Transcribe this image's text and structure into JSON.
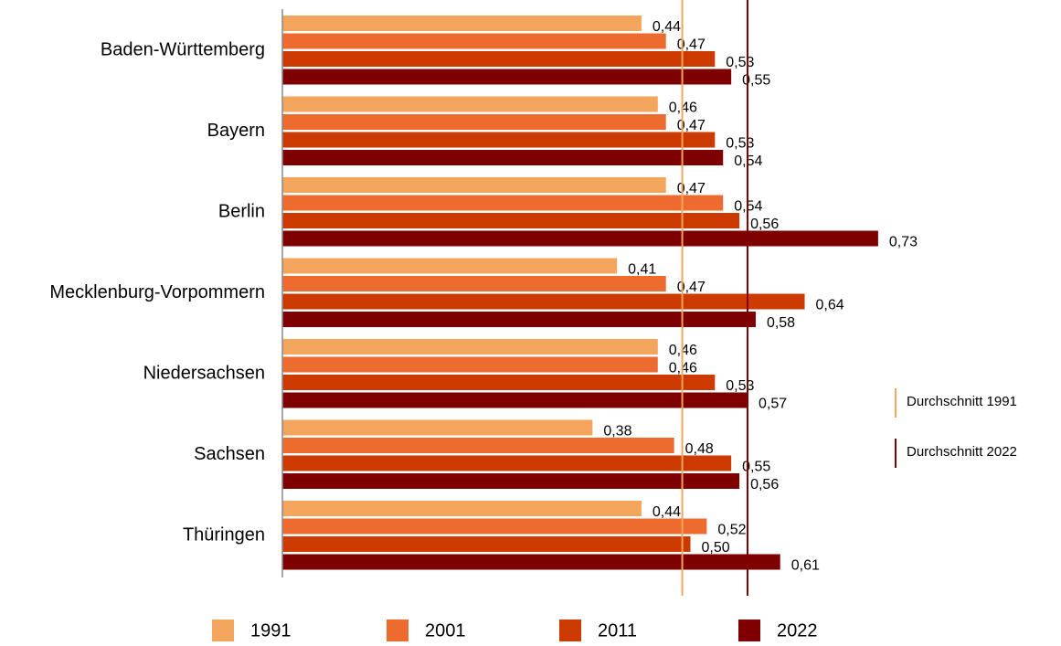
{
  "chart_data": {
    "type": "bar",
    "orientation": "horizontal",
    "categories": [
      "Baden-Württemberg",
      "Bayern",
      "Berlin",
      "Mecklenburg-Vorpommern",
      "Niedersachsen",
      "Sachsen",
      "Thüringen"
    ],
    "series": [
      {
        "name": "1991",
        "color": "#f4a55c",
        "values": [
          0.44,
          0.46,
          0.47,
          0.41,
          0.46,
          0.38,
          0.44
        ],
        "value_labels": [
          "0,44",
          "0,46",
          "0,47",
          "0,41",
          "0,46",
          "0,38",
          "0,44"
        ]
      },
      {
        "name": "2001",
        "color": "#ee6b2f",
        "values": [
          0.47,
          0.47,
          0.54,
          0.47,
          0.46,
          0.48,
          0.52
        ],
        "value_labels": [
          "0,47",
          "0,47",
          "0,54",
          "0,47",
          "0,46",
          "0,48",
          "0,52"
        ]
      },
      {
        "name": "2011",
        "color": "#cc3a00",
        "values": [
          0.53,
          0.53,
          0.56,
          0.64,
          0.53,
          0.55,
          0.5
        ],
        "value_labels": [
          "0,53",
          "0,53",
          "0,56",
          "0,64",
          "0,53",
          "0,55",
          "0,50"
        ]
      },
      {
        "name": "2022",
        "color": "#7f0000",
        "values": [
          0.55,
          0.54,
          0.73,
          0.58,
          0.57,
          0.56,
          0.61
        ],
        "value_labels": [
          "0,55",
          "0,54",
          "0,73",
          "0,58",
          "0,57",
          "0,56",
          "0,61"
        ]
      }
    ],
    "reference_lines": [
      {
        "name": "Durchschnitt 1991",
        "value": 0.49,
        "color": "#f4a55c"
      },
      {
        "name": "Durchschnitt 2022",
        "value": 0.57,
        "color": "#7f0000"
      }
    ],
    "xlim": [
      0,
      1
    ]
  }
}
